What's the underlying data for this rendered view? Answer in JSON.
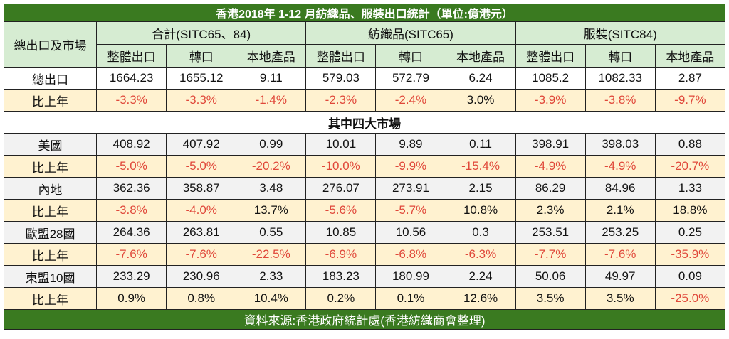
{
  "title": "香港2018年 1-12 月紡織品、服裝出口統計（單位:億港元）",
  "header": {
    "row_label": "總出口及市場",
    "groups": [
      "合計(SITC65、84)",
      "紡織品(SITC65)",
      "服裝(SITC84)"
    ],
    "subcolumns": [
      "整體出口",
      "轉口",
      "本地產品",
      "整體出口",
      "轉口",
      "本地產品",
      "整體出口",
      "轉口",
      "本地產品"
    ]
  },
  "total": {
    "label": "總出口",
    "values": [
      "1664.23",
      "1655.12",
      "9.11",
      "579.03",
      "572.79",
      "6.24",
      "1085.2",
      "1082.33",
      "2.87"
    ],
    "yoy_label": "比上年",
    "yoy": [
      "-3.3%",
      "-3.3%",
      "-1.4%",
      "-2.3%",
      "-2.4%",
      "3.0%",
      "-3.9%",
      "-3.8%",
      "-9.7%"
    ]
  },
  "section_title": "其中四大市場",
  "markets": [
    {
      "label": "美國",
      "values": [
        "408.92",
        "407.92",
        "0.99",
        "10.01",
        "9.89",
        "0.11",
        "398.91",
        "398.03",
        "0.88"
      ],
      "yoy_label": "比上年",
      "yoy": [
        "-5.0%",
        "-5.0%",
        "-20.2%",
        "-10.0%",
        "-9.9%",
        "-15.4%",
        "-4.9%",
        "-4.9%",
        "-20.7%"
      ]
    },
    {
      "label": "內地",
      "values": [
        "362.36",
        "358.87",
        "3.48",
        "276.07",
        "273.91",
        "2.15",
        "86.29",
        "84.96",
        "1.33"
      ],
      "yoy_label": "比上年",
      "yoy": [
        "-3.8%",
        "-4.0%",
        "13.7%",
        "-5.6%",
        "-5.7%",
        "10.8%",
        "2.3%",
        "2.1%",
        "18.8%"
      ]
    },
    {
      "label": "歐盟28國",
      "values": [
        "264.36",
        "263.81",
        "0.55",
        "10.85",
        "10.56",
        "0.3",
        "253.51",
        "253.25",
        "0.25"
      ],
      "yoy_label": "比上年",
      "yoy": [
        "-7.6%",
        "-7.6%",
        "-22.5%",
        "-6.9%",
        "-6.8%",
        "-6.3%",
        "-7.7%",
        "-7.6%",
        "-35.9%"
      ]
    },
    {
      "label": "東盟10國",
      "values": [
        "233.29",
        "230.96",
        "2.33",
        "183.23",
        "180.99",
        "2.24",
        "50.06",
        "49.97",
        "0.09"
      ],
      "yoy_label": "比上年",
      "yoy": [
        "0.9%",
        "0.8%",
        "10.4%",
        "0.2%",
        "0.1%",
        "12.6%",
        "3.5%",
        "3.5%",
        "-25.0%"
      ]
    }
  ],
  "footer": "資料來源:香港政府統計處(香港紡織商會整理)",
  "colors": {
    "title_bg": "#3a7a20",
    "header_bg": "#d6ecd2",
    "yoy_bg": "#fff2d0",
    "negative": "#e0483a"
  }
}
